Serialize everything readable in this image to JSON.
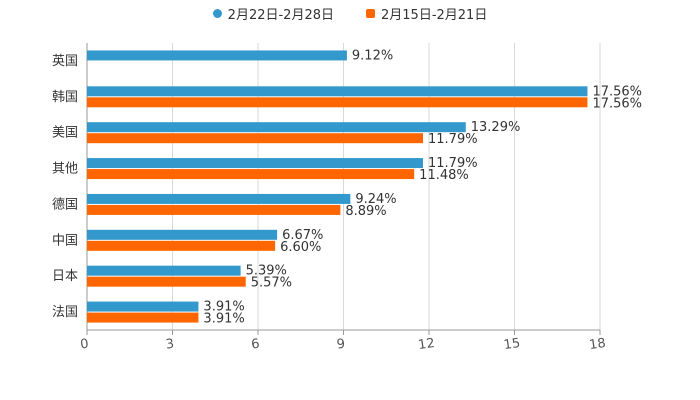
{
  "chart_data": {
    "type": "bar",
    "orientation": "horizontal",
    "title": "",
    "xlabel": "",
    "ylabel": "",
    "categories": [
      "英国",
      "韩国",
      "美国",
      "其他",
      "德国",
      "中国",
      "日本",
      "法国"
    ],
    "series": [
      {
        "name": "2月22日-2月28日",
        "color": "#3399cc",
        "values": [
          9.12,
          17.56,
          13.29,
          11.79,
          9.24,
          6.67,
          5.39,
          3.91
        ],
        "labels": [
          "9.12%",
          "17.56%",
          "13.29%",
          "11.79%",
          "9.24%",
          "6.67%",
          "5.39%",
          "3.91%"
        ]
      },
      {
        "name": "2月15日-2月21日",
        "color": "#ff6600",
        "values": [
          null,
          17.56,
          11.79,
          11.48,
          8.89,
          6.6,
          5.57,
          3.91
        ],
        "labels": [
          "",
          "17.56%",
          "11.79%",
          "11.48%",
          "8.89%",
          "6.60%",
          "5.57%",
          "3.91%"
        ]
      }
    ],
    "xlim": [
      0,
      18
    ],
    "xticks": [
      0,
      3,
      6,
      9,
      12,
      15,
      18
    ],
    "xtick_labels": [
      "0",
      "3",
      "6",
      "9",
      "12",
      "15",
      "18"
    ],
    "grid": true,
    "legend_position": "top-center"
  }
}
